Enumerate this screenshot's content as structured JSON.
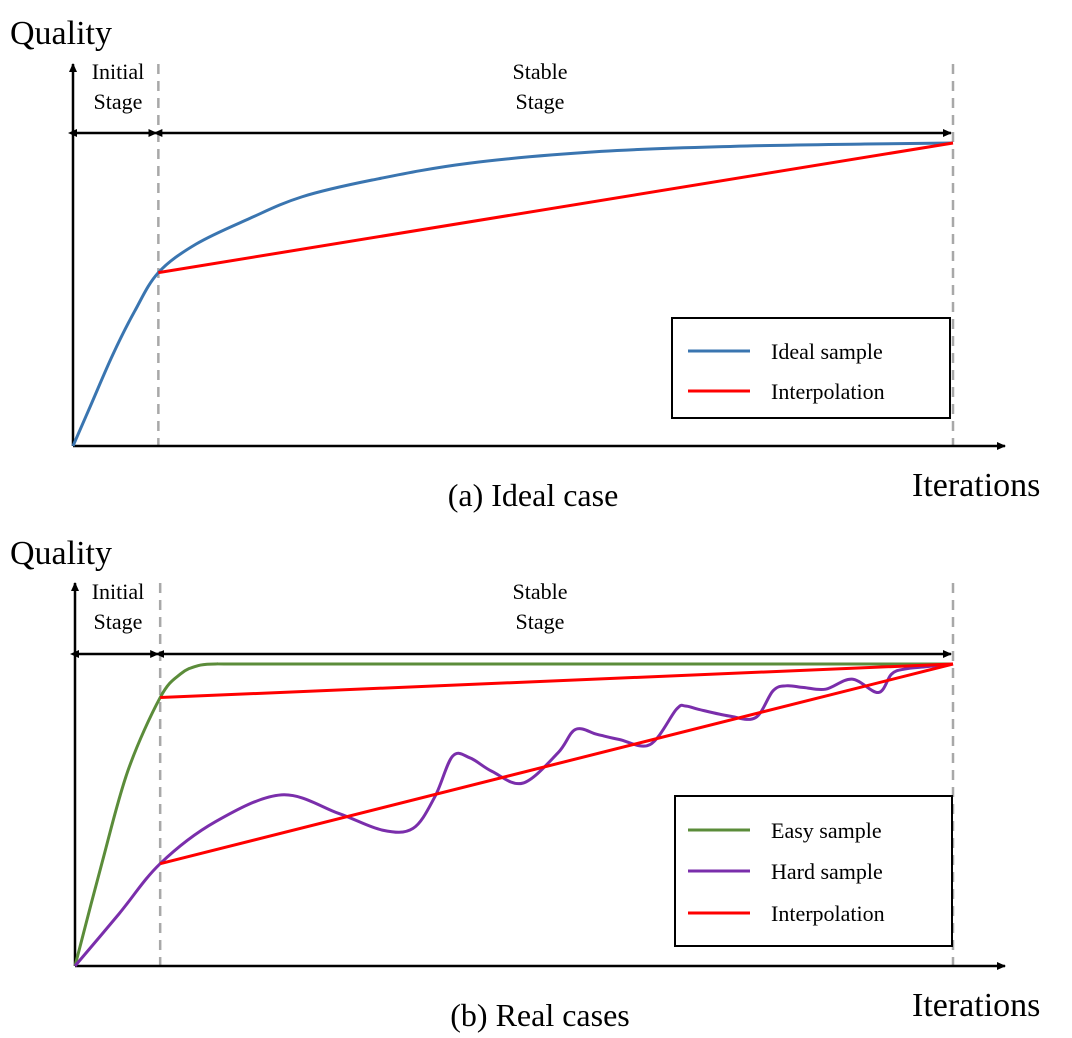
{
  "colors": {
    "ideal": "#3a75b0",
    "interpolation": "#ff0000",
    "easy": "#5b8c3a",
    "hard": "#7a2eab",
    "divider": "#a8a8a8"
  },
  "chart_data": [
    {
      "type": "line",
      "caption": "(a) Ideal case",
      "ylabel": "Quality",
      "xlabel": "Iterations",
      "stages": [
        {
          "line1": "Initial",
          "line2": "Stage"
        },
        {
          "line1": "Stable",
          "line2": "Stage"
        }
      ],
      "xlim": [
        0,
        1
      ],
      "ylim": [
        0,
        1
      ],
      "stage_boundary": 0.097,
      "end": 1.0,
      "series": [
        {
          "name": "Ideal sample",
          "color_key": "ideal",
          "x": [
            0,
            0.02,
            0.045,
            0.07,
            0.097,
            0.14,
            0.2,
            0.26,
            0.34,
            0.45,
            0.6,
            0.75,
            0.9,
            1.0
          ],
          "y": [
            0,
            0.12,
            0.27,
            0.4,
            0.515,
            0.6,
            0.675,
            0.74,
            0.79,
            0.84,
            0.875,
            0.89,
            0.897,
            0.9
          ]
        },
        {
          "name": "Interpolation",
          "color_key": "interpolation",
          "x": [
            0.097,
            1.0
          ],
          "y": [
            0.515,
            0.9
          ]
        }
      ],
      "legend": "bottom-right"
    },
    {
      "type": "line",
      "caption": "(b) Real cases",
      "ylabel": "Quality",
      "xlabel": "Iterations",
      "stages": [
        {
          "line1": "Initial",
          "line2": "Stage"
        },
        {
          "line1": "Stable",
          "line2": "Stage"
        }
      ],
      "xlim": [
        0,
        1
      ],
      "ylim": [
        0,
        1
      ],
      "stage_boundary": 0.097,
      "end": 1.0,
      "series": [
        {
          "name": "Easy sample",
          "color_key": "easy",
          "x": [
            0,
            0.03,
            0.06,
            0.097,
            0.12,
            0.14,
            0.16,
            0.2,
            0.5,
            1.0
          ],
          "y": [
            0,
            0.3,
            0.58,
            0.8,
            0.87,
            0.895,
            0.9,
            0.9,
            0.9,
            0.9
          ]
        },
        {
          "name": "Hard sample",
          "color_key": "hard",
          "x": [
            0,
            0.05,
            0.097,
            0.16,
            0.235,
            0.3,
            0.35,
            0.385,
            0.41,
            0.43,
            0.45,
            0.475,
            0.51,
            0.55,
            0.57,
            0.595,
            0.62,
            0.655,
            0.685,
            0.695,
            0.71,
            0.745,
            0.775,
            0.795,
            0.81,
            0.83,
            0.855,
            0.885,
            0.915,
            0.93,
            0.945,
            0.97,
            1.0
          ],
          "y": [
            0,
            0.155,
            0.305,
            0.43,
            0.51,
            0.455,
            0.405,
            0.41,
            0.505,
            0.625,
            0.62,
            0.58,
            0.545,
            0.635,
            0.705,
            0.69,
            0.675,
            0.66,
            0.765,
            0.775,
            0.765,
            0.745,
            0.74,
            0.82,
            0.835,
            0.83,
            0.825,
            0.855,
            0.815,
            0.87,
            0.885,
            0.892,
            0.9
          ]
        },
        {
          "name": "Interpolation",
          "color_key": "interpolation",
          "segments": [
            {
              "x": [
                0.097,
                1.0
              ],
              "y": [
                0.8,
                0.9
              ]
            },
            {
              "x": [
                0.097,
                1.0
              ],
              "y": [
                0.305,
                0.9
              ]
            }
          ]
        }
      ],
      "legend": "bottom-right"
    }
  ]
}
